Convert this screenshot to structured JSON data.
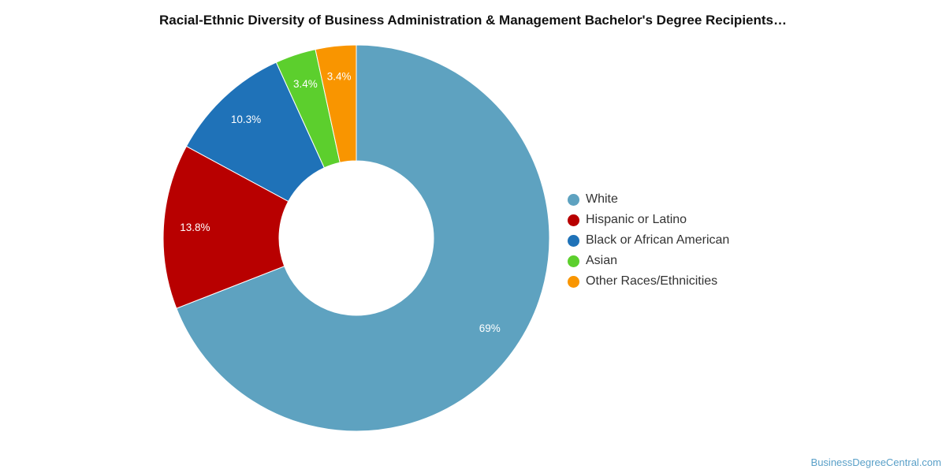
{
  "chart_data": {
    "type": "pie",
    "title": "Racial-Ethnic Diversity of Business Administration & Management Bachelor's Degree Recipients…",
    "donut": true,
    "slices": [
      {
        "label": "White",
        "value": 69,
        "display": "69%",
        "color": "#5ea2c0"
      },
      {
        "label": "Hispanic or Latino",
        "value": 13.8,
        "display": "13.8%",
        "color": "#b80000"
      },
      {
        "label": "Black or African American",
        "value": 10.3,
        "display": "10.3%",
        "color": "#1f72b8"
      },
      {
        "label": "Asian",
        "value": 3.4,
        "display": "3.4%",
        "color": "#5ccf2d"
      },
      {
        "label": "Other Races/Ethnicities",
        "value": 3.4,
        "display": "3.4%",
        "color": "#f99500"
      }
    ],
    "legend_position": "right"
  },
  "footer": {
    "source": "BusinessDegreeCentral.com"
  }
}
